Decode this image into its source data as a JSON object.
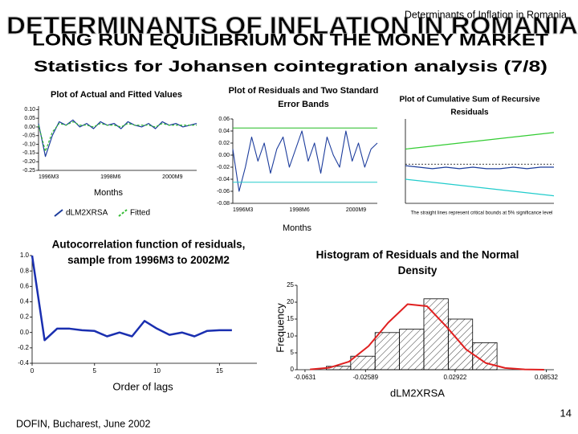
{
  "slide": {
    "watermark": "DETERMINANTS OF INFLATION IN ROMANIA",
    "header": "Determinants of Inflation in Romania",
    "title": "LONG RUN EQUILIBRIUM ON THE MONEY MARKET",
    "subtitle": "Statistics for Johansen cointegration analysis (7/8)",
    "footer": "DOFIN, Bucharest, June 2002",
    "page_number": "14"
  },
  "chart_data": [
    {
      "type": "line",
      "title": [
        "Plot of Actual and Fitted Values"
      ],
      "x_label": "Months",
      "categories": [
        "1996M3",
        null,
        null,
        null,
        null,
        null,
        null,
        null,
        null,
        "1998M6",
        null,
        null,
        null,
        null,
        null,
        null,
        null,
        null,
        "2000M9",
        null,
        null,
        null,
        null,
        null
      ],
      "series": [
        {
          "name": "dLM2XRSA",
          "color": "#1c3c9c",
          "values": [
            0.02,
            -0.17,
            -0.05,
            0.03,
            0.01,
            0.04,
            0.0,
            0.02,
            -0.01,
            0.03,
            0.01,
            0.02,
            -0.01,
            0.03,
            0.01,
            0.0,
            0.02,
            -0.01,
            0.03,
            0.01,
            0.02,
            0.0,
            0.01,
            0.02
          ]
        },
        {
          "name": "Fitted",
          "color": "#33bb33",
          "dash": true,
          "values": [
            0.01,
            -0.14,
            -0.03,
            0.02,
            0.01,
            0.03,
            0.01,
            0.01,
            0.0,
            0.02,
            0.01,
            0.01,
            0.0,
            0.02,
            0.01,
            0.01,
            0.01,
            0.0,
            0.02,
            0.01,
            0.01,
            0.01,
            0.01,
            0.01
          ]
        }
      ],
      "ylim": [
        -0.25,
        0.12
      ],
      "yticks": [
        {
          "value": 0.1,
          "label": "0.10"
        },
        0.05,
        {
          "value": 0,
          "label": "0.00"
        },
        -0.05,
        {
          "value": -0.1,
          "label": "-0.10"
        },
        -0.15,
        {
          "value": -0.2,
          "label": "-0.20"
        },
        -0.25
      ]
    },
    {
      "type": "line",
      "title": [
        "Plot of Residuals and Two Standard",
        "Error Bands"
      ],
      "x_label": "Months",
      "categories": [
        "1996M3",
        null,
        null,
        null,
        null,
        null,
        null,
        null,
        null,
        "1998M6",
        null,
        null,
        null,
        null,
        null,
        null,
        null,
        null,
        "2000M9",
        null,
        null,
        null,
        null,
        null
      ],
      "series": [
        {
          "color": "#1c3c9c",
          "values": [
            0.01,
            -0.06,
            -0.02,
            0.03,
            -0.01,
            0.02,
            -0.03,
            0.01,
            0.03,
            -0.02,
            0.01,
            0.04,
            -0.01,
            0.02,
            -0.03,
            0.03,
            0.0,
            -0.02,
            0.04,
            -0.01,
            0.02,
            -0.02,
            0.01,
            0.02
          ]
        },
        {
          "color": "#22bb22",
          "values": [
            0.045,
            0.045,
            0.045,
            0.045,
            0.045,
            0.045,
            0.045,
            0.045,
            0.045,
            0.045,
            0.045,
            0.045,
            0.045,
            0.045,
            0.045,
            0.045,
            0.045,
            0.045,
            0.045,
            0.045,
            0.045,
            0.045,
            0.045,
            0.045
          ]
        },
        {
          "color": "#22cccc",
          "values": [
            -0.045,
            -0.045,
            -0.045,
            -0.045,
            -0.045,
            -0.045,
            -0.045,
            -0.045,
            -0.045,
            -0.045,
            -0.045,
            -0.045,
            -0.045,
            -0.045,
            -0.045,
            -0.045,
            -0.045,
            -0.045,
            -0.045,
            -0.045,
            -0.045,
            -0.045,
            -0.045,
            -0.045
          ]
        }
      ],
      "ylim": [
        -0.08,
        0.06
      ],
      "yticks": [
        0.06,
        0.04,
        0.02,
        {
          "value": 0,
          "label": "0.00"
        },
        -0.02,
        -0.04,
        -0.06,
        -0.08
      ]
    },
    {
      "type": "line",
      "title": [
        "Plot of Cumulative Sum of Recursive",
        "Residuals"
      ],
      "note": "The straight lines represent critical bounds at 5% significance level",
      "categories": [
        null,
        null,
        null,
        null,
        null,
        null,
        null,
        null,
        null,
        null,
        null,
        null
      ],
      "series": [
        {
          "color": "#33cc33",
          "values": [
            10,
            11,
            12,
            13,
            14,
            15,
            16,
            17,
            18,
            19,
            20,
            21
          ]
        },
        {
          "color": "#22cccc",
          "values": [
            -10,
            -11,
            -12,
            -13,
            -14,
            -15,
            -16,
            -17,
            -18,
            -19,
            -20,
            -21
          ]
        },
        {
          "color": "#1c3c9c",
          "values": [
            -1,
            -2,
            -3,
            -2,
            -3,
            -2,
            -3,
            -3,
            -2,
            -3,
            -2,
            -2
          ]
        }
      ],
      "zero_line": true,
      "ylim": [
        -26,
        30
      ]
    },
    {
      "type": "line",
      "title": [
        "Autocorrelation function of residuals,",
        "sample from 1996M3  to 2002M2"
      ],
      "x_label": "Order of lags",
      "x": [
        0,
        1,
        2,
        3,
        4,
        5,
        6,
        7,
        8,
        9,
        10,
        11,
        12,
        13,
        14,
        15,
        16
      ],
      "series": [
        {
          "color": "#1a2fb0",
          "values": [
            1.0,
            -0.1,
            0.05,
            0.05,
            0.03,
            0.02,
            -0.05,
            0.0,
            -0.05,
            0.15,
            0.05,
            -0.03,
            0.0,
            -0.05,
            0.02,
            0.03,
            0.03
          ]
        }
      ],
      "xlim": [
        0,
        18
      ],
      "xticks": [
        0,
        5,
        10,
        15
      ],
      "ylim": [
        -0.4,
        1.0
      ],
      "yticks": [
        {
          "value": 1,
          "label": "1.0"
        },
        0.8,
        0.6,
        0.4,
        0.2,
        {
          "value": 0,
          "label": "0.0"
        },
        -0.2,
        -0.4
      ]
    },
    {
      "type": "histogram",
      "title": [
        "Histogram of Residuals and the Normal",
        "Density"
      ],
      "x_label": "dLM2XRSA",
      "y_label": "Frequency",
      "bins": [
        -0.05,
        -0.035,
        -0.02,
        -0.005,
        0.01,
        0.025,
        0.04,
        0.055
      ],
      "values": [
        1,
        4,
        11,
        12,
        21,
        15,
        8
      ],
      "curve": {
        "color": "#e02020",
        "x": [
          -0.06,
          -0.048,
          -0.036,
          -0.024,
          -0.012,
          0,
          0.012,
          0.024,
          0.036,
          0.048,
          0.06,
          0.072,
          0.084
        ],
        "values": [
          0.1,
          0.6,
          2.4,
          7.0,
          13.9,
          19.4,
          18.8,
          12.7,
          6.0,
          2.0,
          0.5,
          0.1,
          0.0
        ]
      },
      "xlim": [
        -0.068,
        0.09
      ],
      "xticks": [
        -0.0631,
        -0.02589,
        0.02922,
        0.08532
      ],
      "ylim": [
        0,
        25
      ],
      "yticks": [
        0,
        5,
        10,
        15,
        20,
        25
      ]
    }
  ]
}
